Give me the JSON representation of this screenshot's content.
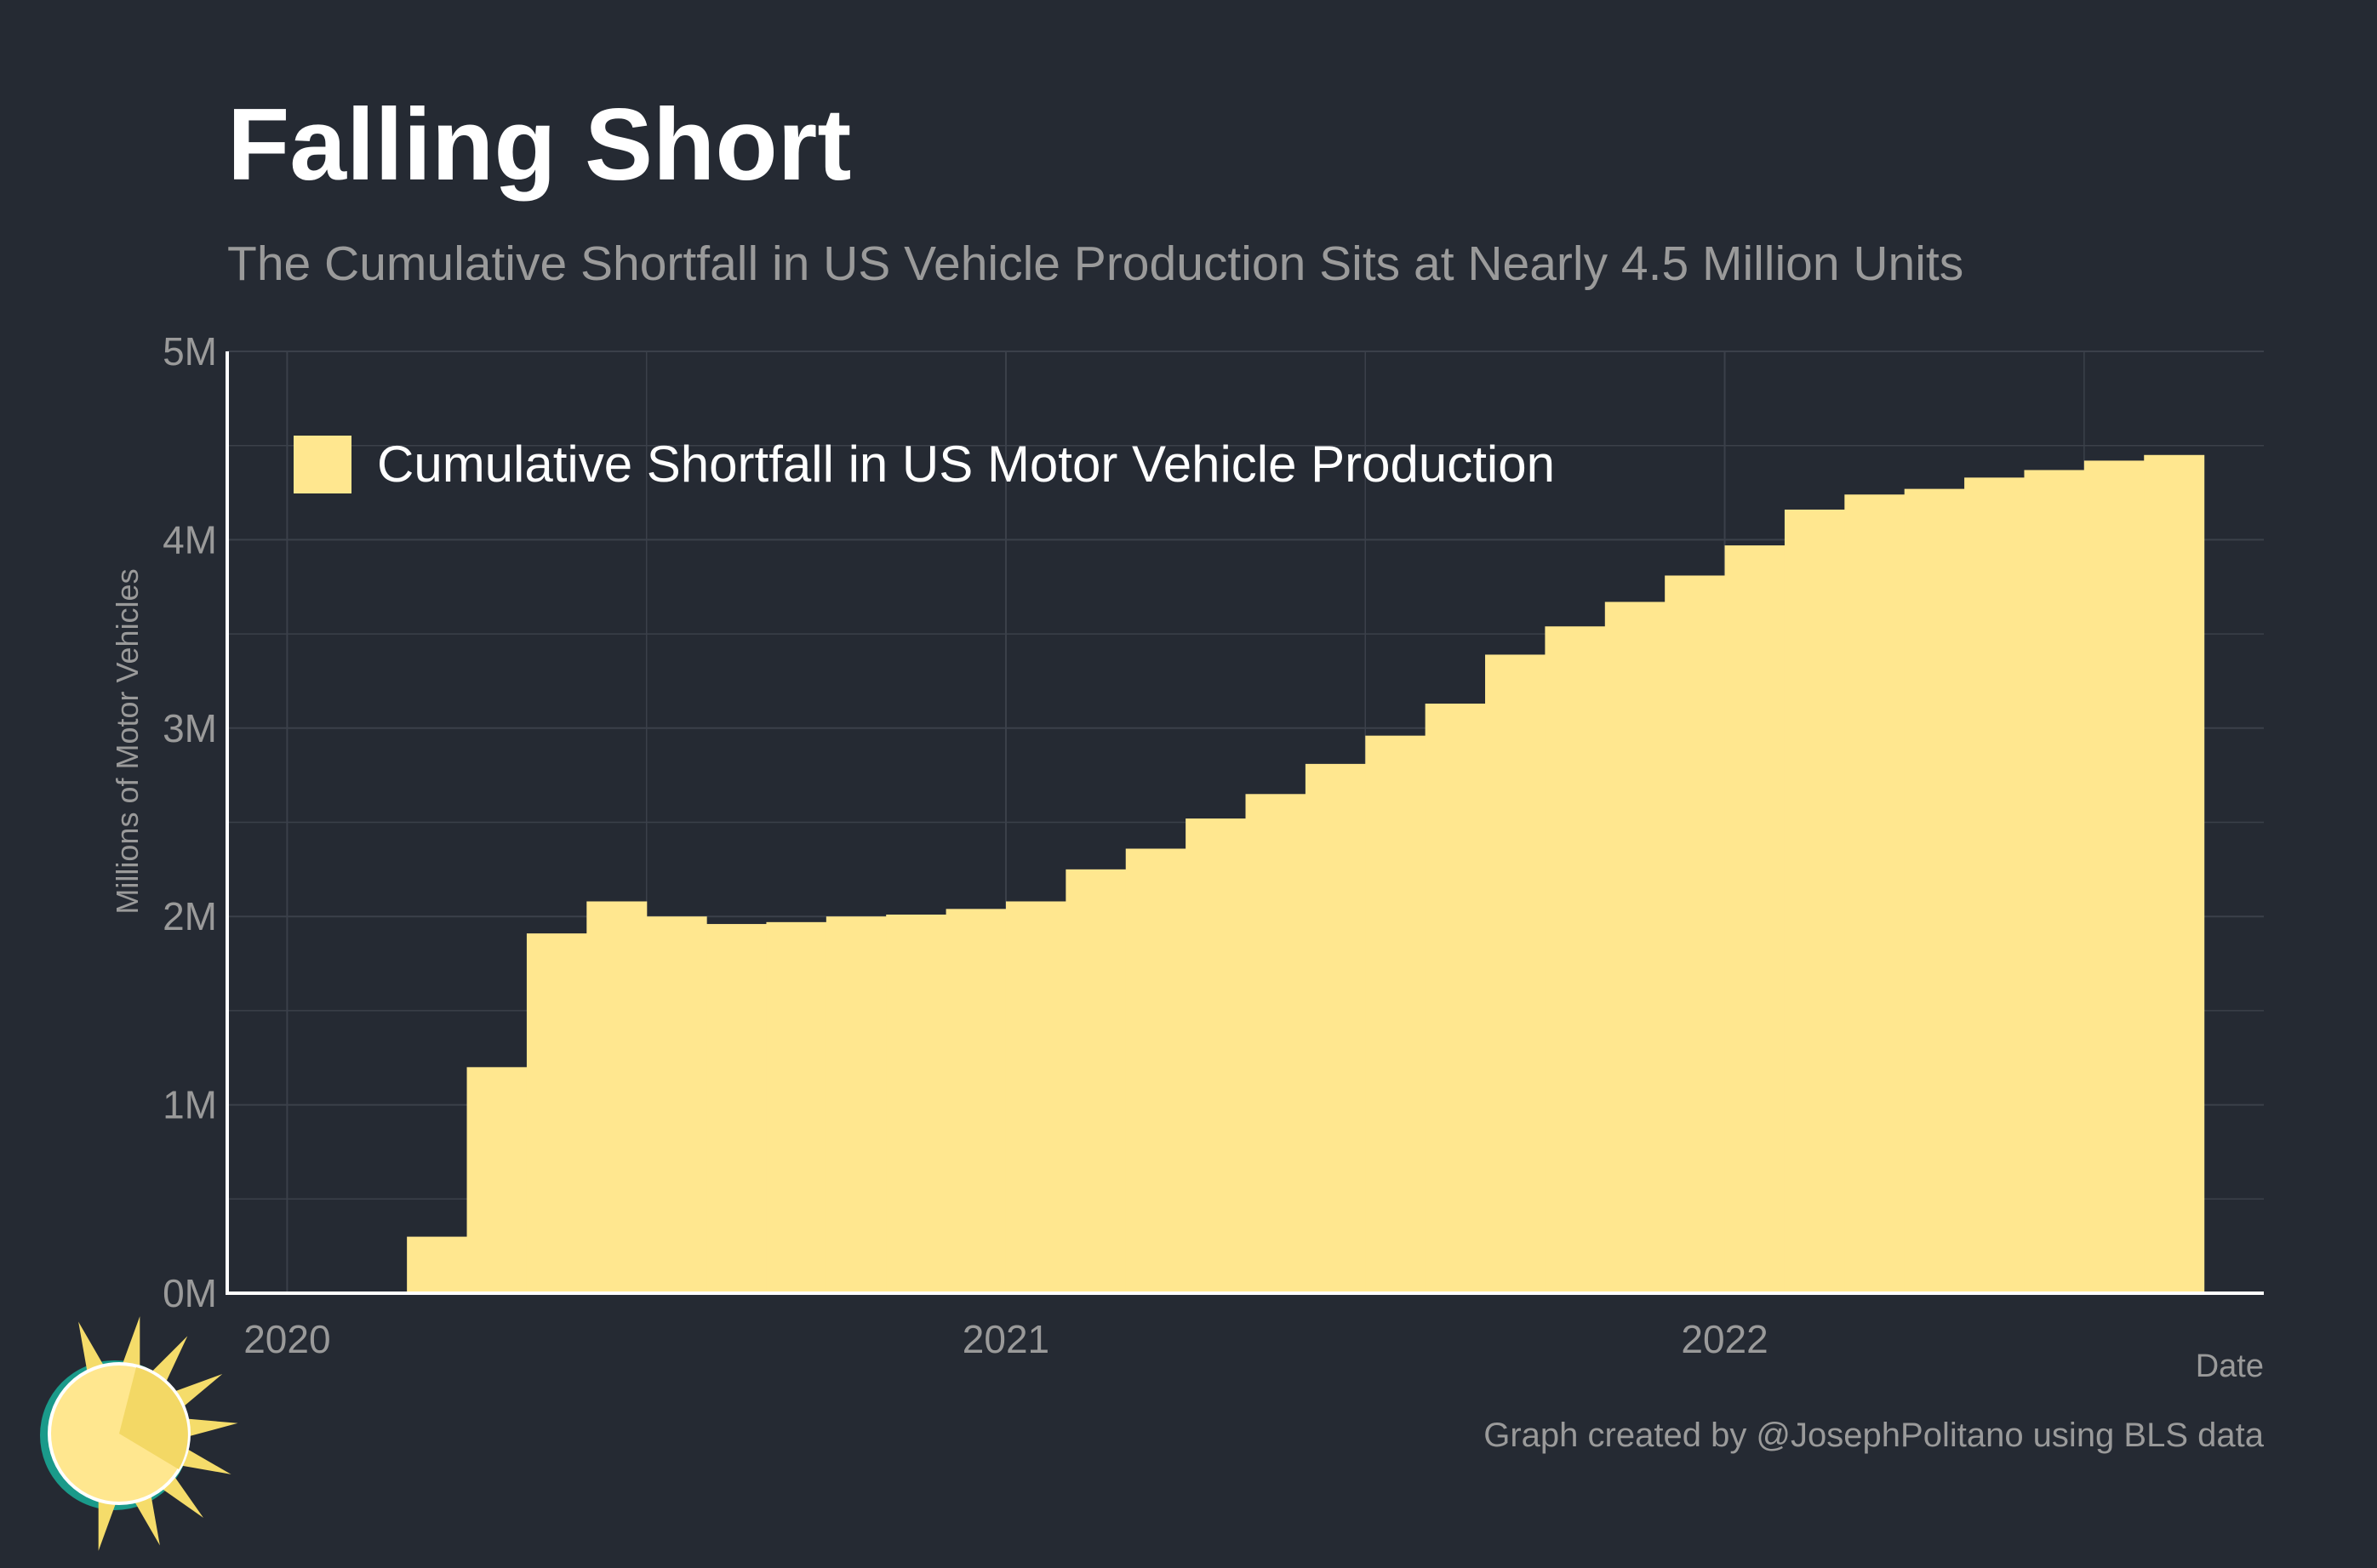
{
  "title": "Falling Short",
  "subtitle": "The Cumulative Shortfall in US Vehicle Production Sits at Nearly 4.5 Million Units",
  "caption": "Graph created by @JosephPolitano using BLS data",
  "logo_icon": "sun-icon",
  "colors": {
    "background": "#252a33",
    "bar": "#ffe78f",
    "grid": "#3b404a",
    "axis_text": "#9a9a9a",
    "title": "#ffffff"
  },
  "chart_data": {
    "type": "bar",
    "title": "Falling Short",
    "subtitle": "The Cumulative Shortfall in US Vehicle Production Sits at Nearly 4.5 Million Units",
    "xlabel": "Date",
    "ylabel": "Millions of Motor Vehicles",
    "ylim": [
      0,
      5
    ],
    "y_ticks": [
      0,
      1,
      2,
      3,
      4,
      5
    ],
    "y_tick_labels": [
      "0M",
      "1M",
      "2M",
      "3M",
      "4M",
      "5M"
    ],
    "x_ticks": [
      "2020",
      "2021",
      "2022"
    ],
    "xlim": [
      "2019-12",
      "2022-10"
    ],
    "grid": true,
    "legend": {
      "position": "top-left",
      "entries": [
        "Cumulative Shortfall in US Motor Vehicle Production"
      ]
    },
    "series": [
      {
        "name": "Cumulative Shortfall in US Motor Vehicle Production",
        "color": "#ffe78f",
        "x": [
          "2020-01",
          "2020-02",
          "2020-03",
          "2020-04",
          "2020-05",
          "2020-06",
          "2020-07",
          "2020-08",
          "2020-09",
          "2020-10",
          "2020-11",
          "2020-12",
          "2021-01",
          "2021-02",
          "2021-03",
          "2021-04",
          "2021-05",
          "2021-06",
          "2021-07",
          "2021-08",
          "2021-09",
          "2021-10",
          "2021-11",
          "2021-12",
          "2022-01",
          "2022-02",
          "2022-03",
          "2022-04",
          "2022-05",
          "2022-06",
          "2022-07",
          "2022-08"
        ],
        "values": [
          0,
          0,
          0.3,
          1.2,
          1.91,
          2.08,
          2.0,
          1.96,
          1.97,
          2.0,
          2.01,
          2.04,
          2.08,
          2.25,
          2.36,
          2.52,
          2.65,
          2.81,
          2.96,
          3.13,
          3.39,
          3.54,
          3.67,
          3.81,
          3.97,
          4.16,
          4.24,
          4.27,
          4.33,
          4.37,
          4.42,
          4.45
        ]
      }
    ]
  }
}
